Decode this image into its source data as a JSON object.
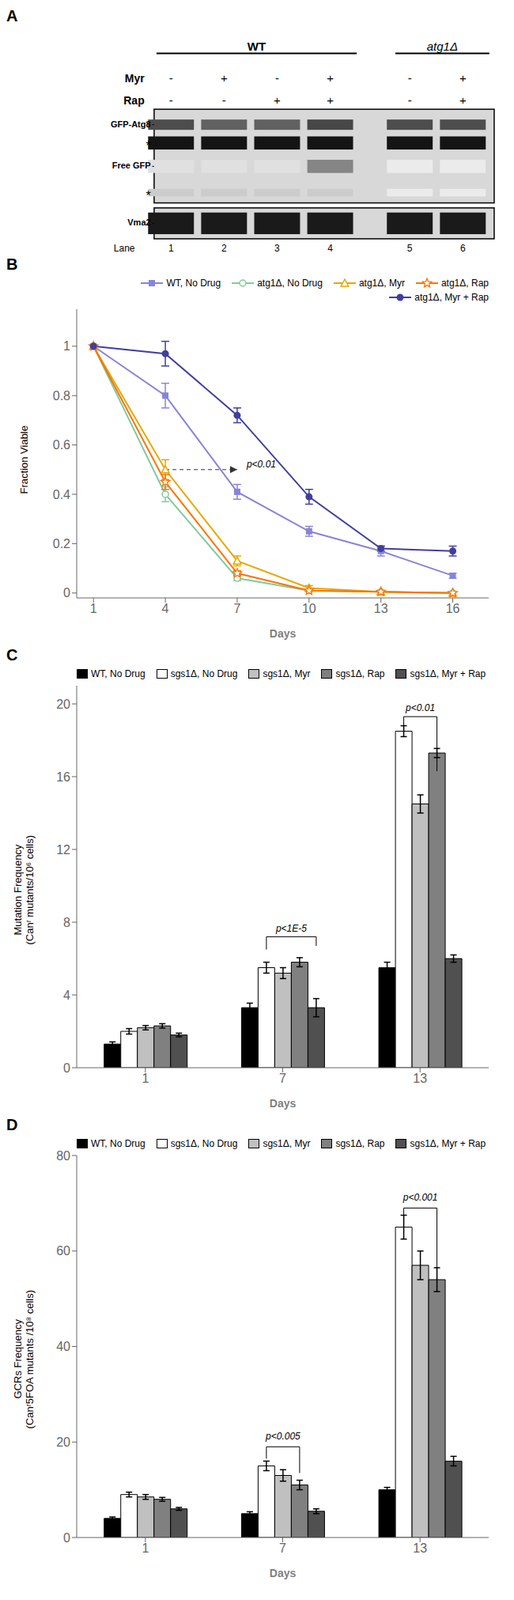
{
  "chart_data": [
    {
      "type": "blot",
      "title": "A",
      "groups": [
        {
          "name": "WT",
          "lanes": [
            "1",
            "2",
            "3",
            "4"
          ]
        },
        {
          "name": "atg1Δ",
          "lanes": [
            "5",
            "6"
          ]
        }
      ],
      "rows": [
        {
          "name": "Myr",
          "values": [
            "-",
            "+",
            "-",
            "+",
            "-",
            "+"
          ]
        },
        {
          "name": "Rap",
          "values": [
            "-",
            "-",
            "+",
            "+",
            "-",
            "+"
          ]
        }
      ],
      "series": [
        {
          "name": "GFP-Atg8",
          "colors": [
            "#4d4d4d",
            "#616161",
            "#616161",
            "#474747",
            "#4d4d4d",
            "#4d4d4d"
          ]
        },
        {
          "name": "*",
          "colors": [
            "#141414",
            "#141414",
            "#141414",
            "#141414",
            "#141414",
            "#141414"
          ]
        },
        {
          "name": "Free GFP",
          "colors": [
            "#e0e0e0",
            "#e0e0e0",
            "#e0e0e0",
            "#858585",
            "#ebebeb",
            "#ebebeb"
          ]
        },
        {
          "name": "*",
          "colors": [
            "#cccccc",
            "#cccccc",
            "#cccccc",
            "#cccccc",
            "#ebebeb",
            "#ebebeb"
          ]
        },
        {
          "name": "Vma2",
          "colors": [
            "#1a1a1a",
            "#1a1a1a",
            "#1a1a1a",
            "#1a1a1a",
            "#1a1a1a",
            "#1a1a1a"
          ]
        }
      ],
      "x_label": "Lane",
      "categories": [
        "1",
        "2",
        "3",
        "4",
        "5",
        "6"
      ]
    },
    {
      "type": "line",
      "title": "B",
      "x_label": "Days",
      "y_label": "Fraction Viable",
      "x": [
        1,
        4,
        7,
        10,
        13,
        16
      ],
      "xlim": [
        0.3,
        17.5
      ],
      "xticks": [
        1,
        4,
        7,
        10,
        13,
        16
      ],
      "ylim": [
        -0.02,
        1.15
      ],
      "yticks": [
        0,
        0.2,
        0.4,
        0.6,
        0.8,
        1
      ],
      "legend": "upper right",
      "series": [
        {
          "name": "WT, No Drug",
          "marker": "square",
          "values": [
            1.0,
            0.8,
            0.41,
            0.25,
            0.17,
            0.07
          ],
          "yerr": [
            0.0,
            0.05,
            0.03,
            0.02,
            0.02,
            0.01
          ]
        },
        {
          "name": "atg1Δ, No Drug",
          "marker": "circle",
          "values": [
            1.0,
            0.4,
            0.06,
            0.01,
            0.005,
            0.0
          ],
          "yerr": [
            0.0,
            0.03,
            0.01,
            0.005,
            0.0,
            0.0
          ]
        },
        {
          "name": "atg1Δ, Myr",
          "marker": "triangle",
          "values": [
            1.0,
            0.5,
            0.13,
            0.02,
            0.005,
            0.0
          ],
          "yerr": [
            0.0,
            0.04,
            0.02,
            0.01,
            0.0,
            0.0
          ]
        },
        {
          "name": "atg1Δ, Rap",
          "marker": "star",
          "values": [
            1.0,
            0.45,
            0.08,
            0.01,
            0.005,
            0.0
          ],
          "yerr": [
            0.0,
            0.03,
            0.01,
            0.005,
            0.0,
            0.0
          ]
        },
        {
          "name": "atg1Δ, Myr + Rap",
          "marker": "dot",
          "values": [
            1.0,
            0.97,
            0.72,
            0.39,
            0.18,
            0.17
          ],
          "yerr": [
            0.0,
            0.05,
            0.03,
            0.03,
            0.01,
            0.02
          ]
        }
      ],
      "annotations": [
        {
          "text": "p<0.01",
          "x1": 4,
          "x2": 7,
          "y": 0.5
        }
      ]
    },
    {
      "type": "bar",
      "title": "C",
      "x_label": "Days",
      "y_label": "Mutation Frequency\n(Canʳ mutants/10⁶ cells)",
      "categories": [
        "1",
        "7",
        "13"
      ],
      "ylim": [
        0,
        21
      ],
      "yticks": [
        0,
        4,
        8,
        12,
        16,
        20
      ],
      "legend": "upper left",
      "series": [
        {
          "name": "WT, No Drug",
          "color": "#000000",
          "values": [
            1.3,
            3.3,
            5.5
          ],
          "yerr": [
            0.12,
            0.25,
            0.3
          ]
        },
        {
          "name": "sgs1Δ, No Drug",
          "color": "#ffffff",
          "values": [
            2.0,
            5.5,
            18.5
          ],
          "yerr": [
            0.15,
            0.3,
            0.3
          ]
        },
        {
          "name": "sgs1Δ, Myr",
          "color": "#c0c0c0",
          "values": [
            2.2,
            5.2,
            14.5
          ],
          "yerr": [
            0.12,
            0.3,
            0.5
          ]
        },
        {
          "name": "sgs1Δ, Rap",
          "color": "#808080",
          "values": [
            2.3,
            5.8,
            17.3
          ],
          "yerr": [
            0.12,
            0.25,
            0.25
          ]
        },
        {
          "name": "sgs1Δ, Myr + Rap",
          "color": "#505050",
          "values": [
            1.8,
            3.3,
            6.0
          ],
          "yerr": [
            0.1,
            0.5,
            0.2
          ]
        }
      ],
      "annotations": [
        {
          "text": "p<1E-5",
          "category": "7",
          "from": "sgs1Δ, No Drug",
          "to": "sgs1Δ, Myr + Rap",
          "y": 7.2,
          "y_from": 6.5,
          "y_to": 6.7,
          "text_y": 7.5
        },
        {
          "text": "p<0.01",
          "category": "13",
          "from": "sgs1Δ, No Drug",
          "to": "sgs1Δ, Rap",
          "y": 19.3,
          "y_from": 18.4,
          "y_to": 16.3,
          "text_y": 19.6
        }
      ]
    },
    {
      "type": "bar",
      "title": "D",
      "x_label": "Days",
      "y_label": "GCRs Frequency\n(Canʳ5FOA mutants /10⁸ cells)",
      "categories": [
        "1",
        "7",
        "13"
      ],
      "ylim": [
        0,
        80
      ],
      "yticks": [
        0,
        20,
        40,
        60,
        80
      ],
      "legend": "upper left",
      "series": [
        {
          "name": "WT, No Drug",
          "color": "#000000",
          "values": [
            4.0,
            5.0,
            10.0
          ],
          "yerr": [
            0.3,
            0.4,
            0.5
          ]
        },
        {
          "name": "sgs1Δ, No Drug",
          "color": "#ffffff",
          "values": [
            9.0,
            15.0,
            65.0
          ],
          "yerr": [
            0.5,
            1.0,
            2.5
          ]
        },
        {
          "name": "sgs1Δ, Myr",
          "color": "#c0c0c0",
          "values": [
            8.5,
            13.0,
            57.0
          ],
          "yerr": [
            0.5,
            1.2,
            3.0
          ]
        },
        {
          "name": "sgs1Δ, Rap",
          "color": "#808080",
          "values": [
            8.0,
            11.0,
            54.0
          ],
          "yerr": [
            0.4,
            1.0,
            2.5
          ]
        },
        {
          "name": "sgs1Δ, Myr + Rap",
          "color": "#505050",
          "values": [
            6.0,
            5.5,
            16.0
          ],
          "yerr": [
            0.3,
            0.5,
            1.0
          ]
        }
      ],
      "annotations": [
        {
          "text": "p<0.005",
          "category": "7",
          "from": "sgs1Δ, No Drug",
          "to": "sgs1Δ, Rap",
          "y": 19.0,
          "y_from": 16.5,
          "y_to": 13.5,
          "text_y": 20.5
        },
        {
          "text": "p<0.001",
          "category": "13",
          "from": "sgs1Δ, No Drug",
          "to": "sgs1Δ, Rap",
          "y": 69.0,
          "y_from": 64.0,
          "y_to": 54.0,
          "text_y": 70.5
        }
      ]
    }
  ]
}
